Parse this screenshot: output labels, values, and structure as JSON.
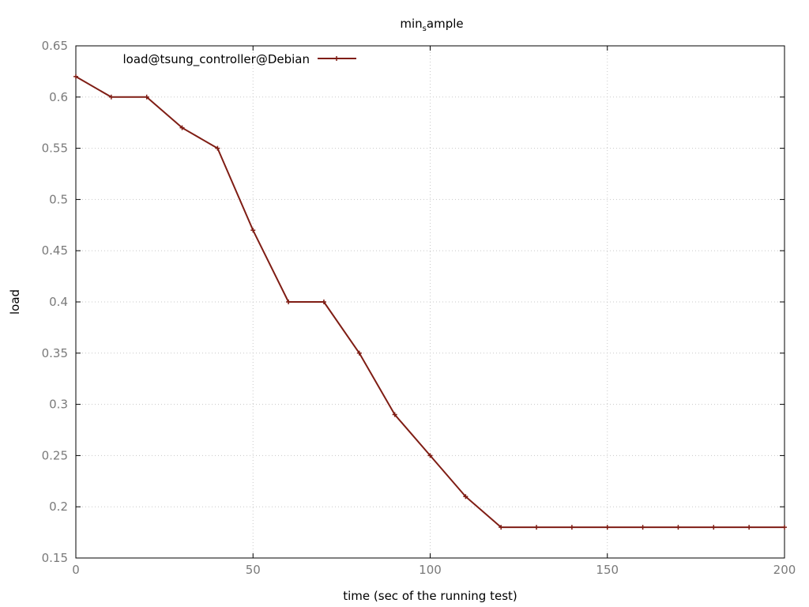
{
  "chart_data": {
    "type": "line",
    "title_main": "min",
    "title_sub": "s",
    "title_rest": "ample",
    "xlabel": "time (sec of the running test)",
    "ylabel": "load",
    "xlim": [
      0,
      200
    ],
    "ylim": [
      0.15,
      0.65
    ],
    "xticks": [
      0,
      50,
      100,
      150,
      200
    ],
    "yticks": [
      0.15,
      0.2,
      0.25,
      0.3,
      0.35,
      0.4,
      0.45,
      0.5,
      0.55,
      0.6,
      0.65
    ],
    "grid": true,
    "legend_position": "top-left",
    "series": [
      {
        "name": "load@tsung_controller@Debian",
        "color": "#7f1d14",
        "x": [
          0,
          10,
          20,
          30,
          40,
          50,
          60,
          70,
          80,
          90,
          100,
          110,
          120,
          130,
          140,
          150,
          160,
          170,
          180,
          190,
          200
        ],
        "y": [
          0.62,
          0.6,
          0.6,
          0.57,
          0.55,
          0.47,
          0.4,
          0.4,
          0.35,
          0.29,
          0.25,
          0.21,
          0.18,
          0.18,
          0.18,
          0.18,
          0.18,
          0.18,
          0.18,
          0.18,
          0.18
        ]
      }
    ]
  }
}
